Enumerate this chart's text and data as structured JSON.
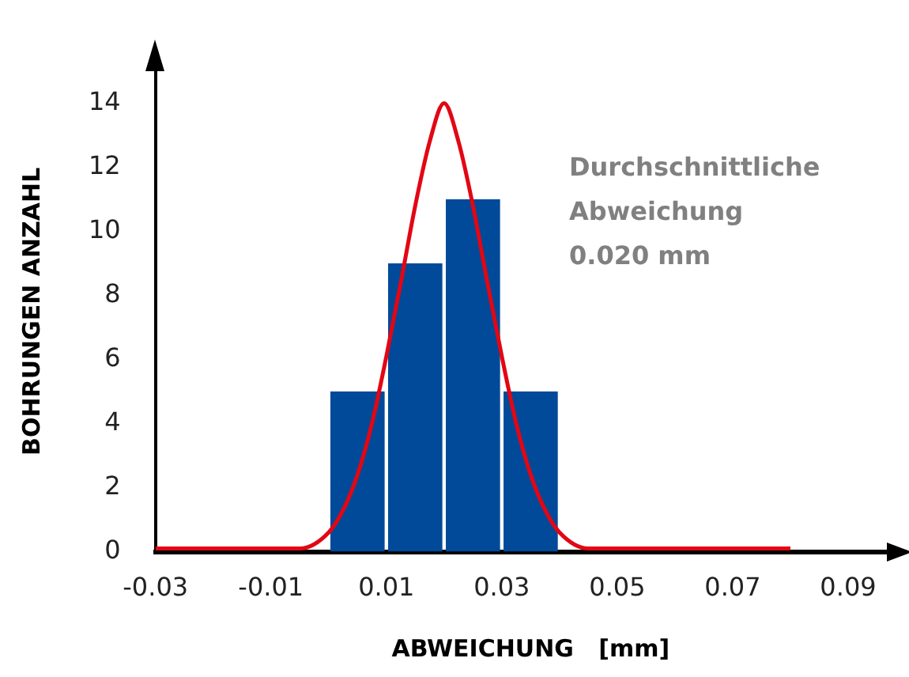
{
  "chart_data": {
    "type": "histogram",
    "xlabel": "ABWEICHUNG   [mm]",
    "ylabel": "BOHRUNGEN ANZAHL",
    "annotations": [
      "Durchschnittliche\nAbweichung\n0.020 mm"
    ],
    "bins": [
      0,
      0.01,
      0.02,
      0.03,
      0.04
    ],
    "values": [
      5,
      9,
      11,
      5
    ],
    "color": "#004a99",
    "series": [
      {
        "type": "line",
        "color": "#e30613",
        "x": [
          -0.03,
          -0.01,
          -0.005,
          0,
          0.0025,
          0.005,
          0.0075,
          0.01,
          0.0125,
          0.015,
          0.0175,
          0.02,
          0.0225,
          0.025,
          0.0275,
          0.03,
          0.0325,
          0.035,
          0.0375,
          0.04,
          0.045,
          0.06,
          0.08
        ],
        "values": [
          0.1,
          0.1,
          0.1,
          0.6,
          1.3,
          2.4,
          4.0,
          6.1,
          8.4,
          10.8,
          12.8,
          14,
          12.8,
          10.8,
          8.4,
          6.1,
          4.0,
          2.4,
          1.3,
          0.6,
          0.1,
          0.1,
          0.1
        ]
      }
    ],
    "xlim": [
      -0.03,
      0.1
    ],
    "xticks": [
      -0.03,
      -0.01,
      0.01,
      0.03,
      0.05,
      0.07,
      0.09
    ],
    "ylim": [
      0,
      15
    ],
    "yticks": [
      0,
      2,
      4,
      6,
      8,
      10,
      12,
      14
    ],
    "grid": false,
    "legend": false
  }
}
